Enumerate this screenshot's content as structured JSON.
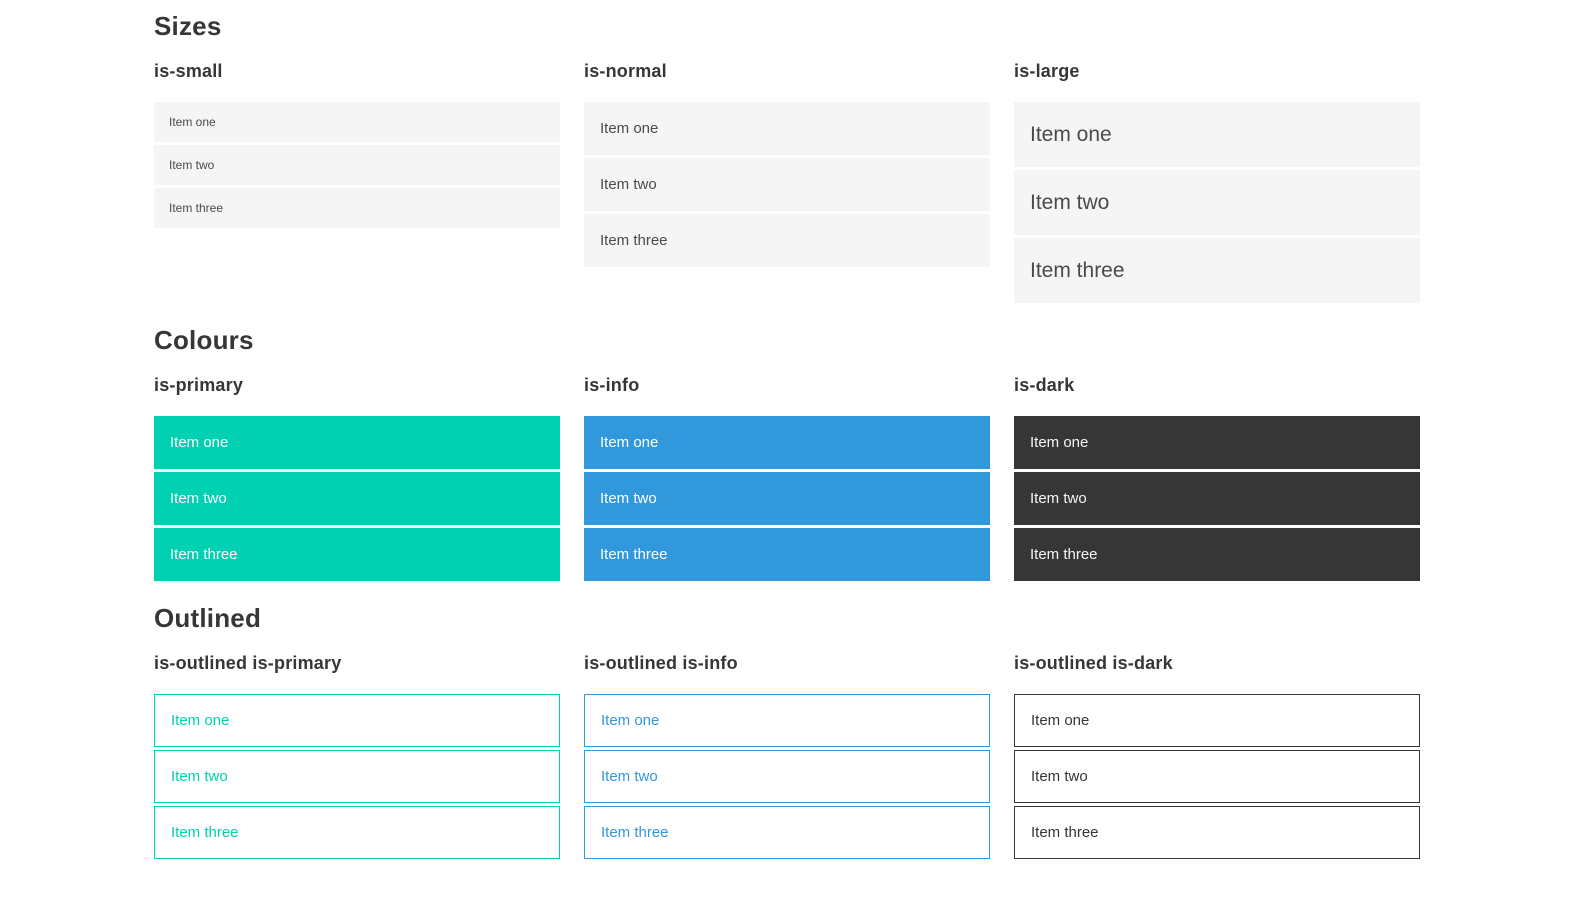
{
  "colors": {
    "primary": "#00d1b2",
    "info": "#3298dc",
    "dark": "#363636",
    "item_background": "#f5f5f5",
    "item_text": "#4a4a4a",
    "heading_text": "#363636",
    "on_color_text": "#ffffff",
    "page_background": "#ffffff"
  },
  "sections": [
    {
      "title": "Sizes",
      "groups": [
        {
          "label": "is-small",
          "variant": "small",
          "items": [
            "Item one",
            "Item two",
            "Item three"
          ]
        },
        {
          "label": "is-normal",
          "variant": "normal",
          "items": [
            "Item one",
            "Item two",
            "Item three"
          ]
        },
        {
          "label": "is-large",
          "variant": "large",
          "items": [
            "Item one",
            "Item two",
            "Item three"
          ]
        }
      ]
    },
    {
      "title": "Colours",
      "groups": [
        {
          "label": "is-primary",
          "variant": "primary",
          "items": [
            "Item one",
            "Item two",
            "Item three"
          ]
        },
        {
          "label": "is-info",
          "variant": "info",
          "items": [
            "Item one",
            "Item two",
            "Item three"
          ]
        },
        {
          "label": "is-dark",
          "variant": "dark",
          "items": [
            "Item one",
            "Item two",
            "Item three"
          ]
        }
      ]
    },
    {
      "title": "Outlined",
      "groups": [
        {
          "label": "is-outlined is-primary",
          "variant": "outlined-primary",
          "items": [
            "Item one",
            "Item two",
            "Item three"
          ]
        },
        {
          "label": "is-outlined is-info",
          "variant": "outlined-info",
          "items": [
            "Item one",
            "Item two",
            "Item three"
          ]
        },
        {
          "label": "is-outlined is-dark",
          "variant": "outlined-dark",
          "items": [
            "Item one",
            "Item two",
            "Item three"
          ]
        }
      ]
    }
  ]
}
